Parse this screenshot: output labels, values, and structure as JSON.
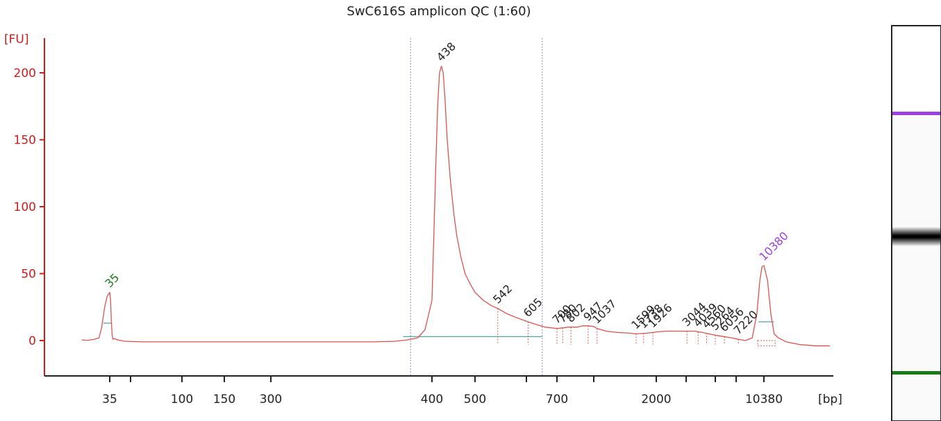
{
  "chart_data": {
    "type": "line",
    "title": "SwC616S amplicon QC (1:60)",
    "ylabel": "[FU]",
    "xlabel": "[bp]",
    "ylim": [
      -25,
      225
    ],
    "yticks": [
      0,
      50,
      100,
      150,
      200
    ],
    "xtick_labels": [
      "35",
      "100",
      "150",
      "300",
      "400",
      "500",
      "700",
      "2000",
      "10380"
    ],
    "series": [
      {
        "points": [
          [
            30,
            0.5
          ],
          [
            31,
            0.2
          ],
          [
            32,
            0.8
          ],
          [
            33,
            2
          ],
          [
            33.5,
            10
          ],
          [
            34,
            24
          ],
          [
            34.5,
            33
          ],
          [
            35,
            36
          ],
          [
            35.5,
            30
          ],
          [
            36,
            14
          ],
          [
            36.5,
            4
          ],
          [
            37,
            1
          ],
          [
            38,
            1.5
          ],
          [
            40,
            0.5
          ],
          [
            45,
            -0.5
          ],
          [
            60,
            -1
          ],
          [
            100,
            -1
          ],
          [
            150,
            -1
          ],
          [
            200,
            -1
          ],
          [
            300,
            -1
          ],
          [
            360,
            -1
          ],
          [
            375,
            -0.5
          ],
          [
            383,
            0.5
          ],
          [
            390,
            2
          ],
          [
            395,
            8
          ],
          [
            400,
            30
          ],
          [
            404,
            80
          ],
          [
            408,
            130
          ],
          [
            412,
            175
          ],
          [
            416,
            200
          ],
          [
            420,
            205
          ],
          [
            424,
            200
          ],
          [
            428,
            180
          ],
          [
            433,
            150
          ],
          [
            440,
            120
          ],
          [
            448,
            95
          ],
          [
            455,
            78
          ],
          [
            465,
            62
          ],
          [
            475,
            50
          ],
          [
            488,
            42
          ],
          [
            500,
            36
          ],
          [
            515,
            30
          ],
          [
            530,
            26
          ],
          [
            542,
            24
          ],
          [
            560,
            20
          ],
          [
            580,
            17
          ],
          [
            605,
            14
          ],
          [
            630,
            12
          ],
          [
            660,
            10
          ],
          [
            700,
            9
          ],
          [
            740,
            9.5
          ],
          [
            780,
            10
          ],
          [
            802,
            10
          ],
          [
            850,
            10
          ],
          [
            900,
            11
          ],
          [
            947,
            11
          ],
          [
            1000,
            10.5
          ],
          [
            1037,
            9
          ],
          [
            1150,
            7
          ],
          [
            1300,
            6
          ],
          [
            1500,
            5.5
          ],
          [
            1599,
            5
          ],
          [
            1800,
            5.5
          ],
          [
            1926,
            6
          ],
          [
            2000,
            6.5
          ],
          [
            2300,
            7
          ],
          [
            2600,
            7
          ],
          [
            3044,
            7
          ],
          [
            3500,
            7
          ],
          [
            4000,
            6
          ],
          [
            4500,
            5
          ],
          [
            5000,
            4
          ],
          [
            5700,
            3
          ],
          [
            6500,
            2
          ],
          [
            7220,
            1
          ],
          [
            8000,
            0
          ],
          [
            8800,
            2
          ],
          [
            9400,
            20
          ],
          [
            9800,
            45
          ],
          [
            10100,
            55
          ],
          [
            10380,
            56
          ],
          [
            10700,
            45
          ],
          [
            11000,
            20
          ],
          [
            11300,
            5
          ],
          [
            11700,
            2
          ],
          [
            12500,
            -1
          ],
          [
            14000,
            -3
          ],
          [
            16000,
            -4
          ],
          [
            18000,
            -4
          ]
        ]
      }
    ],
    "peak_labels": [
      {
        "text": "35",
        "bp": 35,
        "fu": 36,
        "color": "#1a7a1a"
      },
      {
        "text": "438",
        "bp": 420,
        "fu": 205,
        "color": "#222222"
      },
      {
        "text": "542",
        "bp": 542,
        "fu": 24,
        "color": "#222222"
      },
      {
        "text": "605",
        "bp": 605,
        "fu": 14,
        "color": "#222222"
      },
      {
        "text": "700",
        "bp": 700,
        "fu": 9,
        "color": "#222222"
      },
      {
        "text": "780",
        "bp": 740,
        "fu": 9.5,
        "color": "#222222"
      },
      {
        "text": "802",
        "bp": 802,
        "fu": 10,
        "color": "#222222"
      },
      {
        "text": "947",
        "bp": 947,
        "fu": 11,
        "color": "#222222"
      },
      {
        "text": "1037",
        "bp": 1037,
        "fu": 9,
        "color": "#222222"
      },
      {
        "text": "1599",
        "bp": 1599,
        "fu": 5,
        "color": "#222222"
      },
      {
        "text": "1738",
        "bp": 1738,
        "fu": 5.5,
        "color": "#222222"
      },
      {
        "text": "1926",
        "bp": 1926,
        "fu": 6,
        "color": "#222222"
      },
      {
        "text": "3044",
        "bp": 3044,
        "fu": 7,
        "color": "#222222"
      },
      {
        "text": "4039",
        "bp": 3700,
        "fu": 6.5,
        "color": "#222222"
      },
      {
        "text": "4560",
        "bp": 4300,
        "fu": 5.5,
        "color": "#222222"
      },
      {
        "text": "5264",
        "bp": 5000,
        "fu": 4,
        "color": "#222222"
      },
      {
        "text": "6056",
        "bp": 5800,
        "fu": 3,
        "color": "#222222"
      },
      {
        "text": "7220",
        "bp": 7220,
        "fu": 1,
        "color": "#222222"
      },
      {
        "text": "10380",
        "bp": 10380,
        "fu": 56,
        "color": "#9b3fe0"
      }
    ],
    "colors": {
      "trace": "#d9534f",
      "axis": "#c81e1e",
      "ladder_marker": "#1a7a1a",
      "upper_marker": "#9b3fe0",
      "baseline": "#2a8a8a",
      "region_line": "#8888cc",
      "text": "#222222"
    },
    "gel_lane": {
      "bands": [
        {
          "name": "upper marker",
          "bp": 10380,
          "color": "#9b3fe0",
          "intensity": 1
        },
        {
          "name": "main band",
          "bp": 438,
          "color": "#000000",
          "intensity": 1
        },
        {
          "name": "lower marker",
          "bp": 35,
          "color": "#1a7a1a",
          "intensity": 1
        }
      ]
    }
  }
}
